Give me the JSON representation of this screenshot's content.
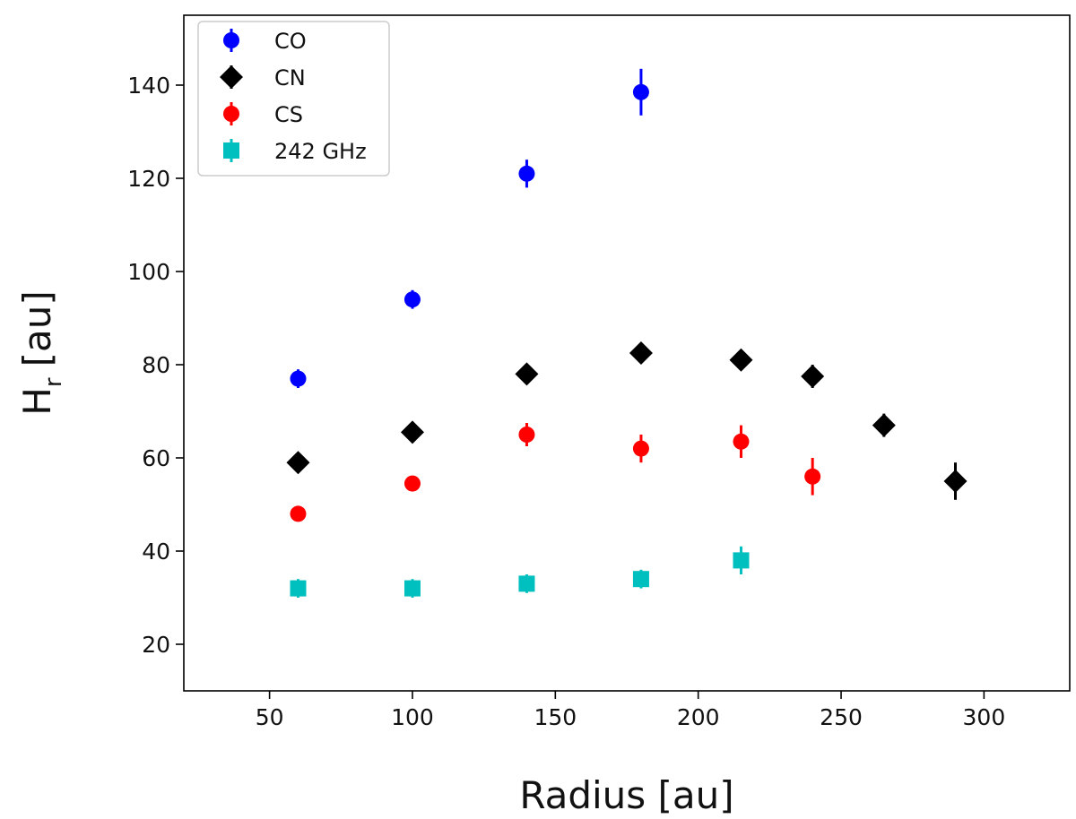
{
  "chart_data": {
    "type": "scatter",
    "xlabel": "Radius [au]",
    "ylabel_main": "H",
    "ylabel_sub": "r",
    "ylabel_unit": "[au]",
    "xlim": [
      20,
      330
    ],
    "ylim": [
      10,
      155
    ],
    "xticks": [
      50,
      100,
      150,
      200,
      250,
      300
    ],
    "yticks": [
      20,
      40,
      60,
      80,
      100,
      120,
      140
    ],
    "grid": false,
    "legend_position": "top-left",
    "series": [
      {
        "name": "CO",
        "color": "#0000ff",
        "marker": "circle",
        "x": [
          60,
          100,
          140,
          180
        ],
        "y": [
          77,
          94,
          121,
          138.5
        ],
        "err": [
          2,
          2,
          3,
          5
        ]
      },
      {
        "name": "CN",
        "color": "#000000",
        "marker": "diamond",
        "x": [
          60,
          100,
          140,
          180,
          215,
          240,
          265,
          290
        ],
        "y": [
          59,
          65.5,
          78,
          82.5,
          81,
          77.5,
          67,
          55
        ],
        "err": [
          1,
          1.5,
          1.5,
          1.5,
          1.8,
          2.5,
          2.5,
          4
        ]
      },
      {
        "name": "CS",
        "color": "#ff0000",
        "marker": "circle",
        "x": [
          60,
          100,
          140,
          180,
          215,
          240
        ],
        "y": [
          48,
          54.5,
          65,
          62,
          63.5,
          56
        ],
        "err": [
          1,
          1,
          2.5,
          3,
          3.5,
          4
        ]
      },
      {
        "name": "242 GHz",
        "color": "#00bfbf",
        "marker": "square",
        "x": [
          60,
          100,
          140,
          180,
          215
        ],
        "y": [
          32,
          32,
          33,
          34,
          38
        ],
        "err": [
          2,
          2,
          2,
          2,
          3
        ]
      }
    ]
  }
}
